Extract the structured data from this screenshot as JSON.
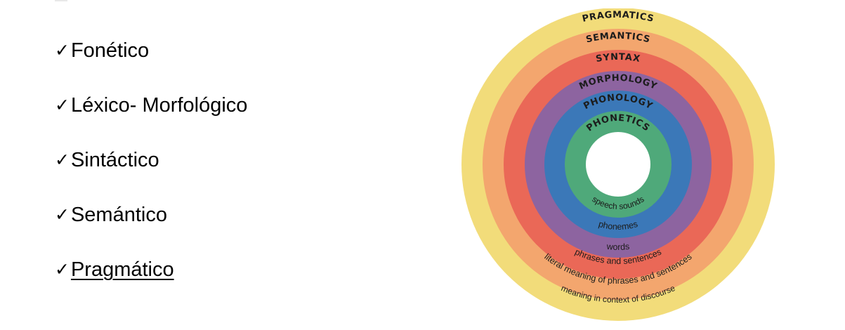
{
  "levels": [
    {
      "check": "✓",
      "label": "Fonético",
      "underlined": false
    },
    {
      "check": "✓",
      "label": "Léxico- Morfológico",
      "underlined": false
    },
    {
      "check": "✓",
      "label": "Sintáctico",
      "underlined": false
    },
    {
      "check": "✓",
      "label": "Semántico",
      "underlined": false
    },
    {
      "check": "✓",
      "label": "Pragmático",
      "underlined": true
    }
  ],
  "diagram": {
    "rings": [
      {
        "title": "PRAGMATICS",
        "desc": "meaning in context of discourse",
        "color": "#f2dc7a"
      },
      {
        "title": "SEMANTICS",
        "desc": "literal meaning of phrases and sentences",
        "color": "#f3a66e"
      },
      {
        "title": "SYNTAX",
        "desc": "phrases and sentences",
        "color": "#ea6857"
      },
      {
        "title": "MORPHOLOGY",
        "desc": "words",
        "color": "#8d64a0"
      },
      {
        "title": "PHONOLOGY",
        "desc": "phonemes",
        "color": "#3b78b8"
      },
      {
        "title": "PHONETICS",
        "desc": "speech sounds",
        "color": "#4fa97a"
      }
    ],
    "center_color": "#ffffff"
  }
}
